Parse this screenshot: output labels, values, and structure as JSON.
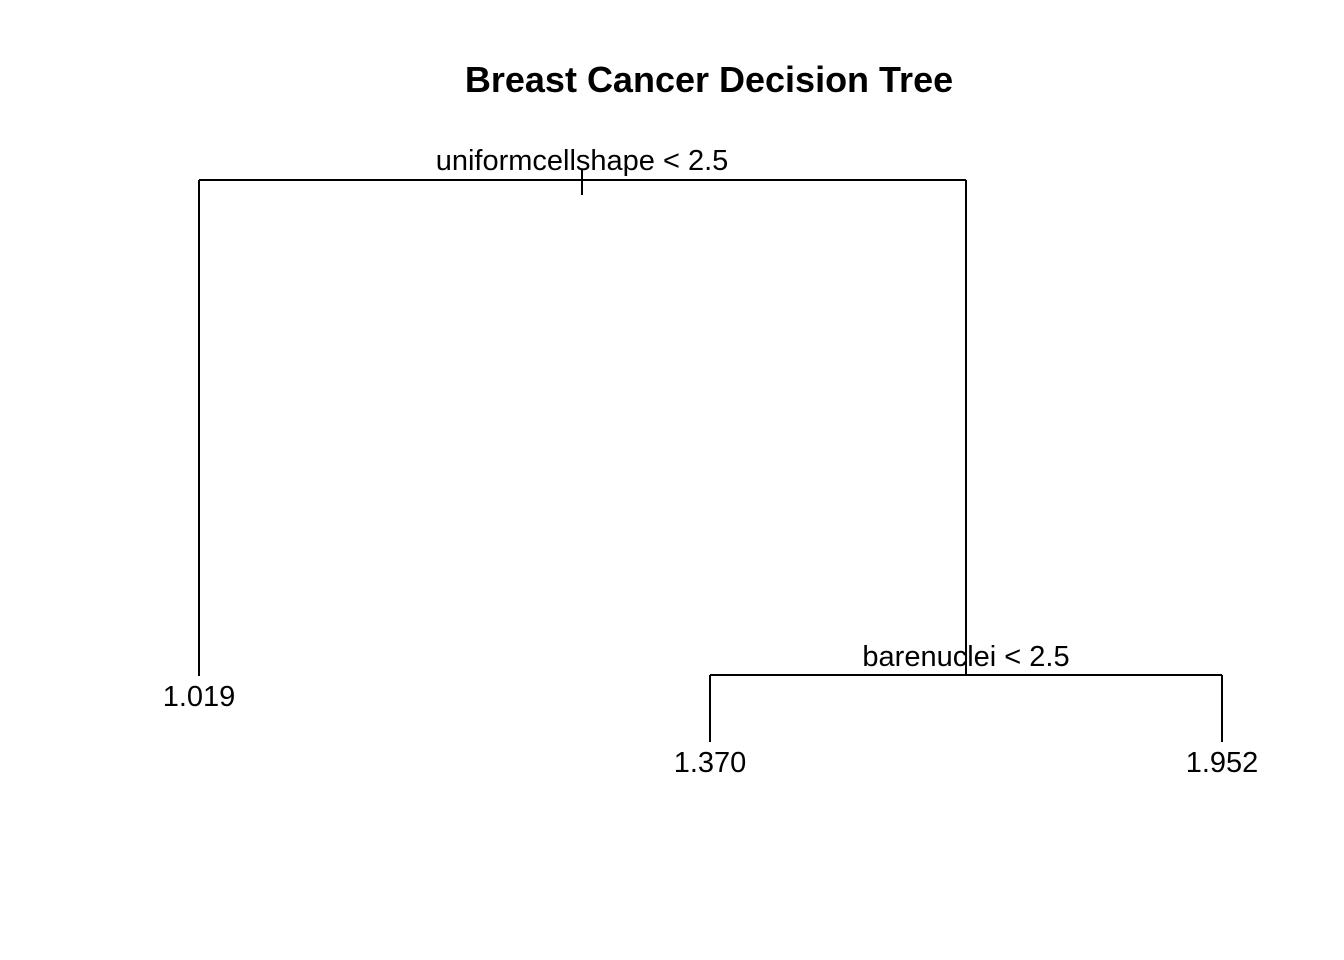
{
  "title": "Breast Cancer Decision Tree",
  "tree": {
    "split": "uniformcellshape < 2.5",
    "left": {
      "leaf": "1.019"
    },
    "right": {
      "split": "barenuclei < 2.5",
      "left": {
        "leaf": "1.370"
      },
      "right": {
        "leaf": "1.952"
      }
    }
  },
  "colors": {
    "line": "#000000",
    "text": "#000000",
    "background": "#ffffff"
  }
}
